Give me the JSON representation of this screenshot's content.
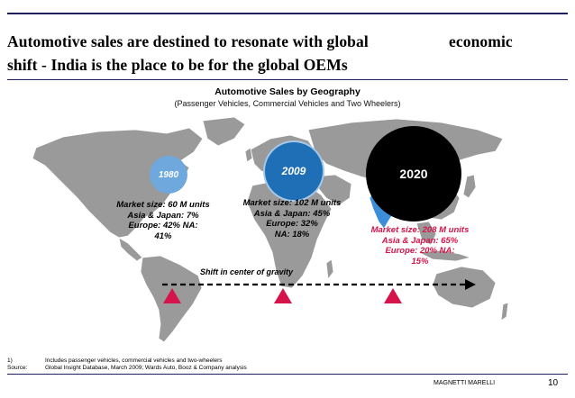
{
  "title_line1": "Automotive sales are destined to resonate with global",
  "title_line1b": "economic",
  "title_line2": "shift - India is the place to be for the global OEMs",
  "subtitle": "Automotive Sales by Geography",
  "subtitle2": "(Passenger Vehicles, Commercial Vehicles and Two Wheelers)",
  "circles": {
    "c1980": "1980",
    "c2009": "2009",
    "c2020": "2020"
  },
  "market": {
    "m1980": [
      "Market size: 60 M units",
      "Asia & Japan: 7%",
      "Europe: 42% NA:",
      "41%"
    ],
    "m2009": [
      "Market size: 102 M units",
      "Asia & Japan: 45%",
      "Europe: 32%",
      "NA: 18%"
    ],
    "m2020": [
      "Market size: 208 M units",
      "Asia & Japan: 65%",
      "Europe: 20% NA:",
      "15%"
    ]
  },
  "shift_label": "Shift in center of gravity",
  "footnote_num": "1)",
  "footnote": "Includes passenger vehicles, commercial vehicles and two-wheelers",
  "source_label": "Source:",
  "source": "Global Insight Database, March 2009; Wards Auto, Booz & Company analysis",
  "brand": "MAGNETTI MARELLI",
  "page_number": "10",
  "colors": {
    "map": "#9a9a9a",
    "india": "#3d8ed8",
    "circle_1980": "#6fa8dc",
    "circle_2009": "#1f6fb6",
    "circle_2020": "#000000",
    "marker": "#d4144a",
    "accent_text_2020": "#d4144a"
  }
}
